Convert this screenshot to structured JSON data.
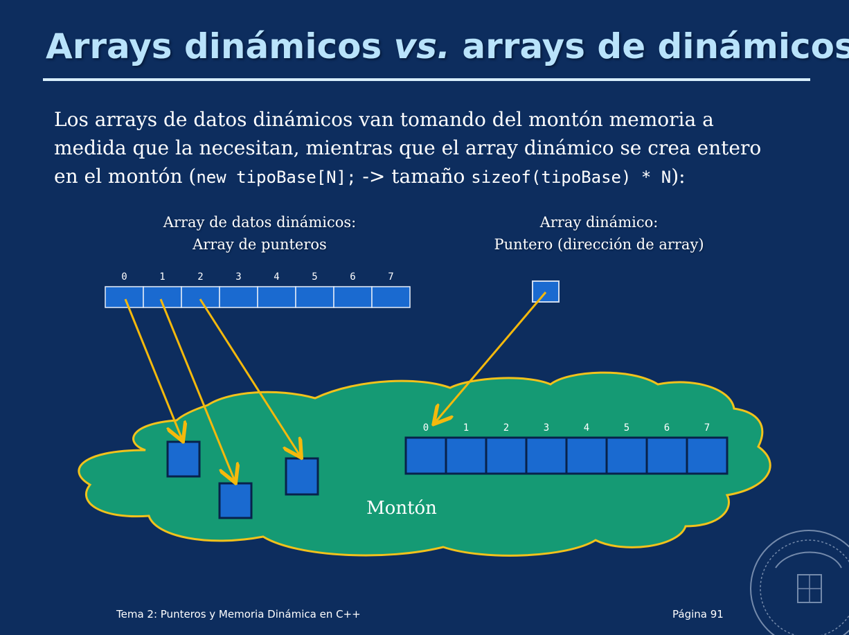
{
  "slide": {
    "title_part1": "Arrays dinámicos ",
    "title_vs": "vs.",
    "title_part2": " arrays de dinámicos",
    "body_line1": "Los arrays de datos dinámicos van tomando del montón memoria a",
    "body_line2": "medida que la necesitan, mientras que el array dinámico se crea entero",
    "body_line3_a": "en el montón (",
    "body_line3_code1": "new tipoBase[N];",
    "body_line3_b": " -> tamaño ",
    "body_line3_code2": "sizeof(tipoBase) * N",
    "body_line3_c": "):"
  },
  "left_caption": {
    "line1": "Array de datos dinámicos:",
    "line2": "Array de punteros"
  },
  "right_caption": {
    "line1": "Array dinámico:",
    "line2": "Puntero (dirección de array)"
  },
  "pointer_array": {
    "indices": [
      "0",
      "1",
      "2",
      "3",
      "4",
      "5",
      "6",
      "7"
    ]
  },
  "heap_array": {
    "indices": [
      "0",
      "1",
      "2",
      "3",
      "4",
      "5",
      "6",
      "7"
    ]
  },
  "heap": {
    "label": "Montón"
  },
  "footer": {
    "left": "Tema 2: Punteros y Memoria Dinámica en C++",
    "right": "Página 91"
  },
  "colors": {
    "background": "#0d2d5e",
    "title": "#b9e3fb",
    "cell_blue": "#1a6ad0",
    "heap_green": "#159a74",
    "heap_border": "#f2c21b",
    "arrow": "#f5b90c"
  },
  "logo": {
    "name": "university-seal-icon"
  }
}
